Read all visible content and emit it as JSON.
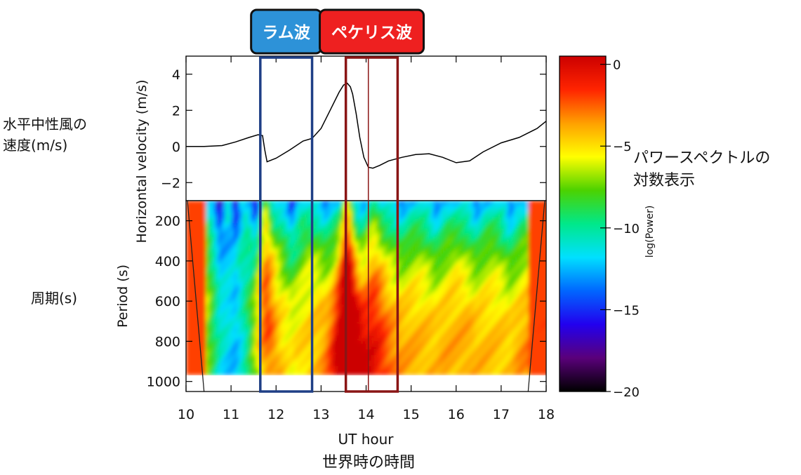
{
  "chart_data": [
    {
      "type": "line",
      "title": "",
      "ylabel": "Horizontal velocity (m/s)",
      "ylabel_jp": [
        "水平中性風の",
        "速度(m/s)"
      ],
      "xlim": [
        10,
        18
      ],
      "ylim": [
        -3,
        5
      ],
      "yticks": [
        -2,
        0,
        2,
        4
      ],
      "ytick_labels": [
        "−2",
        "0",
        "2",
        "4"
      ],
      "series": [
        {
          "name": "Horizontal velocity",
          "x": [
            10,
            10.4,
            10.8,
            11.1,
            11.4,
            11.6,
            11.7,
            11.75,
            11.8,
            12.0,
            12.3,
            12.6,
            12.8,
            13.0,
            13.2,
            13.4,
            13.5,
            13.58,
            13.65,
            13.7,
            13.78,
            13.86,
            13.95,
            14.05,
            14.15,
            14.3,
            14.5,
            14.8,
            15.1,
            15.4,
            15.7,
            16.0,
            16.3,
            16.6,
            17.0,
            17.4,
            17.8,
            18.0
          ],
          "y": [
            0.0,
            0.0,
            0.05,
            0.25,
            0.5,
            0.65,
            0.6,
            -0.2,
            -0.85,
            -0.65,
            -0.2,
            0.3,
            0.45,
            1.0,
            2.0,
            3.0,
            3.4,
            3.5,
            3.3,
            2.9,
            1.8,
            0.5,
            -0.6,
            -1.15,
            -1.2,
            -1.05,
            -0.8,
            -0.6,
            -0.45,
            -0.4,
            -0.6,
            -0.9,
            -0.8,
            -0.3,
            0.2,
            0.5,
            1.0,
            1.4
          ]
        }
      ]
    },
    {
      "type": "heatmap",
      "title": "",
      "xlabel": "UT hour",
      "xlabel_jp": "世界時の時間",
      "ylabel": "Period (s)",
      "ylabel_jp": "周期(s)",
      "xlim": [
        10,
        18
      ],
      "ylim": [
        1050,
        100
      ],
      "xticks": [
        10,
        11,
        12,
        13,
        14,
        15,
        16,
        17,
        18
      ],
      "yticks": [
        200,
        400,
        600,
        800,
        1000
      ],
      "period_max_shown": 965,
      "cone_of_influence": {
        "left_edge_at_1050": 10.4,
        "right_edge_at_1050": 17.6
      },
      "colorbar": {
        "label": "log(Power)",
        "range": [
          -20,
          0.5
        ],
        "ticks": [
          0,
          -5,
          -10,
          -15,
          -20
        ],
        "tick_labels": [
          "0",
          "−5",
          "−10",
          "−15",
          "−20"
        ],
        "stops": [
          "#000000",
          "#5a007a",
          "#2200ee",
          "#0066ff",
          "#00e0ff",
          "#00e88a",
          "#4cd200",
          "#ffff00",
          "#ffa000",
          "#ff2400",
          "#cc0000"
        ]
      },
      "annotation_colorbar_jp": [
        "パワースペクトルの",
        "対数表示"
      ]
    }
  ],
  "annotations": [
    {
      "label": "ラム波",
      "x_range": [
        11.65,
        12.8
      ],
      "box_color": "#1f3f86",
      "label_bg": "#2d92d8"
    },
    {
      "label": "ペケリス波",
      "x_range": [
        13.55,
        14.7
      ],
      "box_color": "#8a1515",
      "label_bg": "#ee2020",
      "marker_x": 14.05
    }
  ]
}
